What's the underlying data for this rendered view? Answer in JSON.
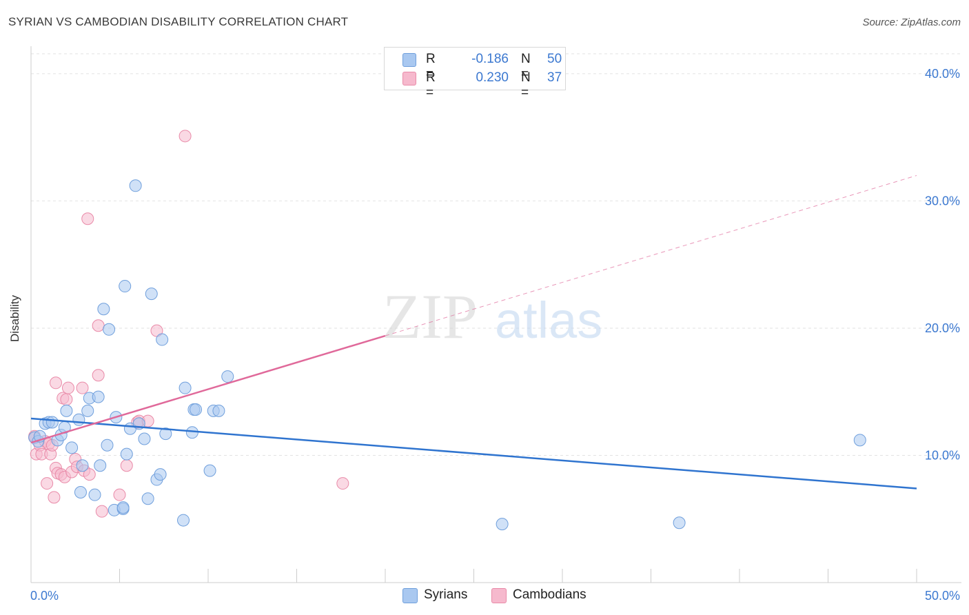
{
  "title": "SYRIAN VS CAMBODIAN DISABILITY CORRELATION CHART",
  "source": "Source: ZipAtlas.com",
  "colors": {
    "syrians_fill": "#a9c8f0",
    "syrians_stroke": "#6f9fdc",
    "syrians_line": "#2f74cf",
    "cambodians_fill": "#f6b9cd",
    "cambodians_stroke": "#e98aa8",
    "cambodians_line": "#e0699a",
    "axis_text": "#3b78d0"
  },
  "legend": {
    "rows": [
      {
        "r_label": "R =",
        "r_value": "-0.186",
        "n_label": "N =",
        "n_value": "50"
      },
      {
        "r_label": "R =",
        "r_value": "0.230",
        "n_label": "N =",
        "n_value": "37"
      }
    ]
  },
  "watermark": {
    "zip": "ZIP",
    "atlas": "atlas"
  },
  "chart_data": {
    "type": "scatter",
    "title": "SYRIAN VS CAMBODIAN DISABILITY CORRELATION CHART",
    "xlabel": "",
    "ylabel": "Disability",
    "xlim": [
      0,
      50
    ],
    "ylim": [
      0,
      42
    ],
    "x_tick_labels": [
      "0.0%",
      "50.0%"
    ],
    "y_tick_labels": [
      "10.0%",
      "20.0%",
      "30.0%",
      "40.0%"
    ],
    "y_ticks": [
      10,
      20,
      30,
      40
    ],
    "grid": true,
    "legend_position": "top-center",
    "series": [
      {
        "name": "Syrians",
        "r": -0.186,
        "n": 50,
        "trend": {
          "x": [
            0,
            50
          ],
          "y": [
            12.9,
            7.4
          ],
          "dashed_from": null
        },
        "points": [
          [
            0.2,
            11.4
          ],
          [
            0.4,
            11.1
          ],
          [
            0.5,
            11.5
          ],
          [
            0.8,
            12.5
          ],
          [
            1.0,
            12.6
          ],
          [
            1.2,
            12.6
          ],
          [
            1.5,
            11.2
          ],
          [
            1.7,
            11.6
          ],
          [
            1.9,
            12.2
          ],
          [
            2.0,
            13.5
          ],
          [
            2.3,
            10.6
          ],
          [
            2.7,
            12.8
          ],
          [
            2.8,
            7.1
          ],
          [
            2.9,
            9.2
          ],
          [
            3.2,
            13.5
          ],
          [
            3.3,
            14.5
          ],
          [
            3.6,
            6.9
          ],
          [
            3.8,
            14.6
          ],
          [
            3.9,
            9.2
          ],
          [
            4.1,
            21.5
          ],
          [
            4.3,
            10.8
          ],
          [
            4.4,
            19.9
          ],
          [
            4.7,
            5.7
          ],
          [
            4.8,
            13.0
          ],
          [
            5.2,
            5.8
          ],
          [
            5.3,
            23.3
          ],
          [
            5.4,
            10.1
          ],
          [
            5.6,
            12.1
          ],
          [
            5.9,
            31.2
          ],
          [
            6.1,
            12.5
          ],
          [
            6.4,
            11.3
          ],
          [
            6.6,
            6.6
          ],
          [
            6.8,
            22.7
          ],
          [
            7.1,
            8.1
          ],
          [
            7.3,
            8.5
          ],
          [
            7.6,
            11.7
          ],
          [
            7.4,
            19.1
          ],
          [
            8.6,
            4.9
          ],
          [
            8.7,
            15.3
          ],
          [
            9.2,
            13.6
          ],
          [
            9.1,
            11.8
          ],
          [
            9.3,
            13.6
          ],
          [
            10.1,
            8.8
          ],
          [
            10.3,
            13.5
          ],
          [
            10.6,
            13.5
          ],
          [
            11.1,
            16.2
          ],
          [
            26.6,
            4.6
          ],
          [
            36.6,
            4.7
          ],
          [
            46.8,
            11.2
          ],
          [
            5.2,
            5.9
          ]
        ]
      },
      {
        "name": "Cambodians",
        "r": 0.23,
        "n": 37,
        "trend": {
          "x": [
            0,
            20,
            50
          ],
          "y": [
            11.0,
            19.4,
            32.0
          ],
          "dashed_from": 20
        },
        "points": [
          [
            0.2,
            11.4
          ],
          [
            0.3,
            10.1
          ],
          [
            0.5,
            10.8
          ],
          [
            0.6,
            10.1
          ],
          [
            0.8,
            11.1
          ],
          [
            0.9,
            7.8
          ],
          [
            1.0,
            10.9
          ],
          [
            1.1,
            10.1
          ],
          [
            1.2,
            10.8
          ],
          [
            1.3,
            6.7
          ],
          [
            1.4,
            9.0
          ],
          [
            1.5,
            8.6
          ],
          [
            1.4,
            15.7
          ],
          [
            1.7,
            8.5
          ],
          [
            1.8,
            14.5
          ],
          [
            1.9,
            8.3
          ],
          [
            2.0,
            14.4
          ],
          [
            2.1,
            15.3
          ],
          [
            2.3,
            8.7
          ],
          [
            2.5,
            9.7
          ],
          [
            2.6,
            9.1
          ],
          [
            2.9,
            15.3
          ],
          [
            3.0,
            8.8
          ],
          [
            3.2,
            28.6
          ],
          [
            3.3,
            8.5
          ],
          [
            3.8,
            16.3
          ],
          [
            3.8,
            20.2
          ],
          [
            4.0,
            5.6
          ],
          [
            5.0,
            6.9
          ],
          [
            5.4,
            9.2
          ],
          [
            6.0,
            12.6
          ],
          [
            6.1,
            12.7
          ],
          [
            6.6,
            12.7
          ],
          [
            7.1,
            19.8
          ],
          [
            8.7,
            35.1
          ],
          [
            17.6,
            7.8
          ],
          [
            0.2,
            11.5
          ]
        ]
      }
    ]
  },
  "bottom_legend": [
    {
      "label": "Syrians"
    },
    {
      "label": "Cambodians"
    }
  ]
}
